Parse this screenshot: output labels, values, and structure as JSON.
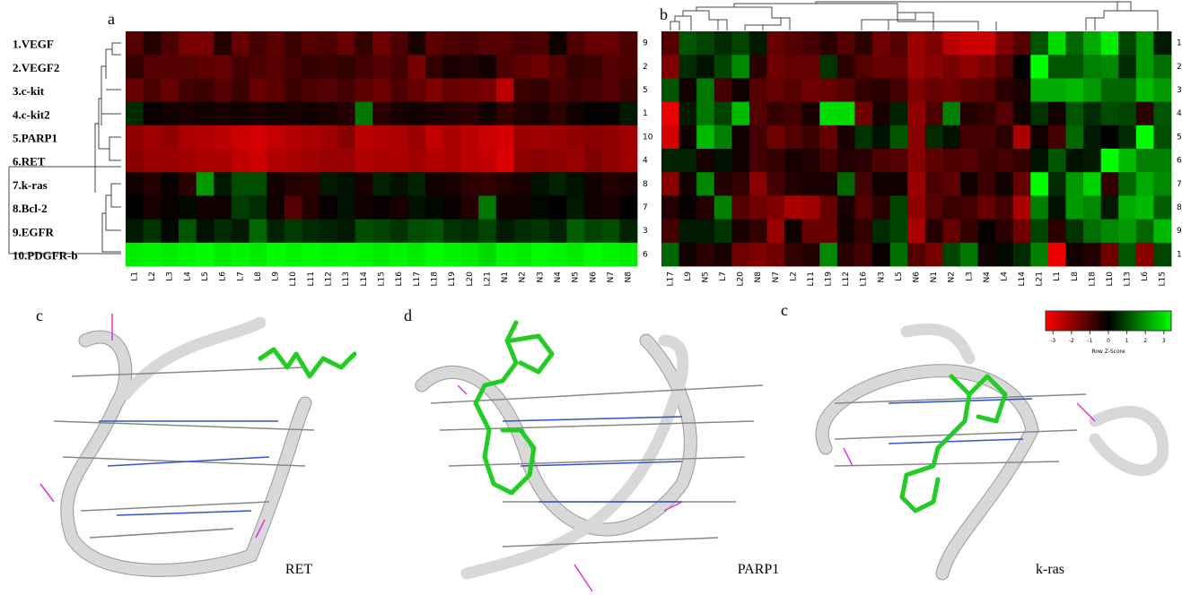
{
  "panels": [
    {
      "label": "a",
      "row_labels": [
        "1.VEGF",
        "2.VEGF2",
        "3.c-kit",
        "4.c-kit2",
        "5.PARP1",
        "6.RET",
        "7.k-ras",
        "8.Bcl-2",
        "9.EGFR",
        "10.PDGFR-b"
      ],
      "right_labels": [
        "9",
        "2",
        "5",
        "1",
        "10",
        "4",
        "8",
        "7",
        "3",
        "6"
      ],
      "col_labels": [
        "L1",
        "L2",
        "L3",
        "L4",
        "L5",
        "L6",
        "L7",
        "L8",
        "L9",
        "L10",
        "L11",
        "L12",
        "L13",
        "L14",
        "L15",
        "L16",
        "L17",
        "L18",
        "L19",
        "L20",
        "L21",
        "N1",
        "N2",
        "N3",
        "N4",
        "N5",
        "N6",
        "N7",
        "N8"
      ],
      "values": [
        [
          -1,
          -0.4,
          -0.9,
          -1.4,
          -1.4,
          -0.4,
          -1.2,
          -0.8,
          -1.1,
          -0.7,
          -1,
          -0.9,
          -1.2,
          -0.6,
          -1.3,
          -0.9,
          -0.3,
          -1.1,
          -0.9,
          -0.8,
          -1,
          -1,
          -0.8,
          -0.9,
          -0.2,
          -0.9,
          -1.2,
          -1.2,
          -0.9
        ],
        [
          -0.6,
          -1,
          -1,
          -1,
          -1.1,
          -1.2,
          -0.8,
          -0.9,
          -1,
          -0.8,
          -0.6,
          -0.7,
          -0.6,
          -0.8,
          -1,
          -0.8,
          -1.4,
          -0.6,
          -0.3,
          -0.4,
          -0.2,
          -0.9,
          -1.1,
          -1.3,
          -1,
          -0.6,
          -0.7,
          -1,
          -0.9
        ],
        [
          -1.2,
          -0.9,
          -1.2,
          -0.8,
          -0.7,
          -1,
          -0.7,
          -1.2,
          -1.1,
          -0.7,
          -0.9,
          -1,
          -0.8,
          -1.1,
          -1.3,
          -0.9,
          -1.2,
          -1.5,
          -1.2,
          -1.3,
          -1.4,
          -2.2,
          -0.7,
          -0.6,
          -0.9,
          -0.7,
          -0.8,
          -1,
          -0.7
        ],
        [
          0.5,
          -0.1,
          -0.2,
          -0.3,
          -0.2,
          -0.3,
          -0.2,
          -0.3,
          -0.2,
          -0.3,
          -0.2,
          -0.3,
          -0.4,
          1.4,
          -0.5,
          -0.3,
          -0.2,
          -0.3,
          -0.4,
          -0.5,
          -0.2,
          -0.6,
          -0.4,
          -0.3,
          -0.5,
          -0.2,
          0,
          -0.1,
          0.3
        ],
        [
          -1.7,
          -1.9,
          -1.7,
          -2,
          -2.1,
          -2.2,
          -2.4,
          -2.5,
          -2.3,
          -2.1,
          -2,
          -1.9,
          -1.6,
          -2.2,
          -2.1,
          -2,
          -1.8,
          -2.3,
          -2,
          -2.2,
          -2.4,
          -2.5,
          -1.8,
          -1.9,
          -1.8,
          -1.7,
          -1.6,
          -1.7,
          -1.9
        ],
        [
          -1.6,
          -1.8,
          -1.8,
          -1.9,
          -2,
          -2,
          -2.3,
          -2.4,
          -2.1,
          -2,
          -1.9,
          -1.8,
          -1.8,
          -2.1,
          -2,
          -2,
          -1.9,
          -2.1,
          -2,
          -2.2,
          -2.3,
          -2.6,
          -1.7,
          -1.6,
          -1.7,
          -1.8,
          -1.5,
          -1.7,
          -1.9
        ],
        [
          -0.2,
          -0.4,
          -0.1,
          -0.5,
          1.8,
          0.3,
          0.9,
          0.9,
          -0.2,
          -0.4,
          -0.5,
          0.3,
          0.2,
          -0.3,
          0.4,
          0.2,
          0.4,
          -0.2,
          -0.3,
          -0.5,
          -0.6,
          -0.4,
          -0.3,
          0.2,
          0.4,
          0.2,
          -0.2,
          -0.4,
          -0.3
        ],
        [
          0,
          -0.3,
          -0.1,
          0.1,
          -0.2,
          -0.2,
          0.7,
          0.5,
          -0.2,
          -1,
          -0.4,
          -0.1,
          0.2,
          -0.2,
          -0.1,
          -0.3,
          0.2,
          0.1,
          -0.1,
          -0.4,
          1.4,
          -0.2,
          -0.2,
          0.1,
          0,
          0.3,
          -0.2,
          -0.3,
          0
        ],
        [
          0.3,
          0.6,
          0.1,
          1,
          0.2,
          0.5,
          0.3,
          1.2,
          0.4,
          0.7,
          0.5,
          0.4,
          0.3,
          0.9,
          0.8,
          0.6,
          0.9,
          1,
          0.6,
          0.5,
          0.8,
          0.3,
          0.5,
          0.6,
          0.4,
          1.1,
          0.8,
          0.9,
          0.4
        ],
        [
          2.8,
          2.9,
          2.8,
          2.9,
          3,
          2.8,
          2.9,
          2.8,
          3,
          2.9,
          3,
          2.9,
          3,
          2.9,
          2.8,
          2.9,
          2.8,
          3,
          2.9,
          2.8,
          2.6,
          2.9,
          2.8,
          3,
          2.9,
          2.8,
          3,
          2.9,
          2.8
        ]
      ]
    },
    {
      "label": "b",
      "right_labels": [
        "1",
        "2",
        "3",
        "4",
        "5",
        "6",
        "7",
        "8",
        "9",
        "1"
      ],
      "col_labels": [
        "L17",
        "L9",
        "N5",
        "L7",
        "L20",
        "N8",
        "N7",
        "L2",
        "L11",
        "L19",
        "L12",
        "L16",
        "N3",
        "L5",
        "N6",
        "N1",
        "N2",
        "L3",
        "N4",
        "L4",
        "L14",
        "L21",
        "L1",
        "L8",
        "L18",
        "L10",
        "L13",
        "L6",
        "L15"
      ],
      "values": [
        [
          -1,
          1,
          0.8,
          0.5,
          0.8,
          0.3,
          -1.2,
          -1,
          -0.8,
          -0.5,
          -1,
          -0.5,
          -1.3,
          -1,
          -1.8,
          -1.5,
          -2.2,
          -2.4,
          -2.4,
          -1.5,
          -1,
          1,
          2.6,
          1.2,
          2,
          2.8,
          0.8,
          1.8,
          0.3
        ],
        [
          -1.5,
          0.5,
          0.2,
          0.8,
          1.6,
          -0.5,
          -1.3,
          -1.2,
          -1.2,
          0.6,
          -0.5,
          -1,
          -1.2,
          -1.2,
          -1.8,
          -1.6,
          -1.4,
          -1.7,
          -1.4,
          -1,
          0,
          3,
          1,
          1,
          1.5,
          1.6,
          0.5,
          1.8,
          1.3
        ],
        [
          1,
          -0.2,
          1.4,
          -0.8,
          -0.2,
          -1,
          -1.2,
          -1,
          -1.3,
          -1.2,
          -1,
          -0.6,
          -0.5,
          -0.8,
          -1.5,
          -1.2,
          -1.3,
          -1.1,
          -1,
          -0.5,
          -0.3,
          2,
          2,
          2.2,
          1.8,
          1.2,
          1.2,
          2.2,
          1.8
        ],
        [
          -2.8,
          0.3,
          1.4,
          0.8,
          2.2,
          -1,
          -0.6,
          -0.8,
          -0.3,
          2.6,
          2.6,
          -1.3,
          -0.3,
          0.4,
          -1.7,
          -0.9,
          1.5,
          -0.4,
          -0.6,
          -1,
          -0.2,
          0.6,
          -0.2,
          1,
          0.5,
          0.9,
          0.8,
          -0.5,
          1
        ],
        [
          -2.5,
          -0.2,
          2.2,
          1.5,
          -0.2,
          -0.8,
          -1.3,
          -1,
          -0.7,
          -1.2,
          -0.3,
          0.6,
          0.2,
          1,
          -1.6,
          0.5,
          0.2,
          -0.8,
          -0.8,
          -0.5,
          -2,
          -0.2,
          -0.8,
          1.2,
          0.3,
          0,
          0.5,
          3,
          0.9
        ],
        [
          0.4,
          0.4,
          -0.3,
          0.2,
          -0.2,
          -0.8,
          -0.6,
          -0.3,
          -0.4,
          -0.8,
          -0.4,
          -0.5,
          -0.9,
          -1,
          -1.6,
          -1.1,
          -0.9,
          -1,
          -0.7,
          -0.8,
          -0.6,
          0.2,
          1,
          0.2,
          0.3,
          3,
          2.2,
          1.5,
          1.5
        ],
        [
          -1.6,
          -0.2,
          1.6,
          -0.4,
          -0.6,
          -1.6,
          -0.8,
          -0.4,
          -0.3,
          -0.3,
          1.2,
          -0.8,
          -0.2,
          -0.2,
          -1.8,
          -0.9,
          -1.1,
          -0.2,
          -0.7,
          -0.2,
          -1.2,
          3,
          0.5,
          1.8,
          2.5,
          -0.6,
          1.2,
          2,
          1.6
        ],
        [
          -0.4,
          -0.1,
          -0.4,
          1.5,
          -1,
          -1.3,
          -1.5,
          -2,
          -1.9,
          -1.2,
          -0.3,
          -1,
          -0.5,
          0.8,
          -1.7,
          -1,
          -0.7,
          -0.8,
          -1.2,
          -0.8,
          -2,
          1.5,
          0.2,
          1.8,
          1.6,
          0.3,
          2,
          2.2,
          1.1
        ],
        [
          -0.8,
          0.3,
          0.3,
          0.6,
          -0.3,
          -0.6,
          -1.8,
          -0.2,
          -1.2,
          -1.2,
          -0.2,
          -0.6,
          0.5,
          0.8,
          -2,
          -0.4,
          -1.2,
          -0.6,
          -0.1,
          -0.5,
          -1.3,
          0.8,
          -0.5,
          0.6,
          1.3,
          1.6,
          1.8,
          1.2,
          2.2
        ],
        [
          1.2,
          -0.2,
          -0.5,
          -0.3,
          -1.3,
          -1.5,
          -1.3,
          -0.6,
          -0.4,
          1.6,
          -0.5,
          -0.8,
          -0.1,
          1.3,
          -1,
          -1.4,
          0.8,
          1.4,
          -0.2,
          0.1,
          0.5,
          1.5,
          -2.8,
          -0.2,
          -0.4,
          -1.3,
          1,
          -1.6,
          0.8
        ]
      ]
    }
  ],
  "colorbar": {
    "label": "Row Z-Score",
    "lim": [
      -3.4,
      3.4
    ],
    "ticks": [
      -3,
      -2,
      -1,
      0,
      1,
      2,
      3
    ]
  },
  "structures": [
    {
      "panel": "c",
      "name": "RET"
    },
    {
      "panel": "d",
      "name": "PARP1"
    },
    {
      "panel": "c",
      "name": "k-ras"
    }
  ]
}
